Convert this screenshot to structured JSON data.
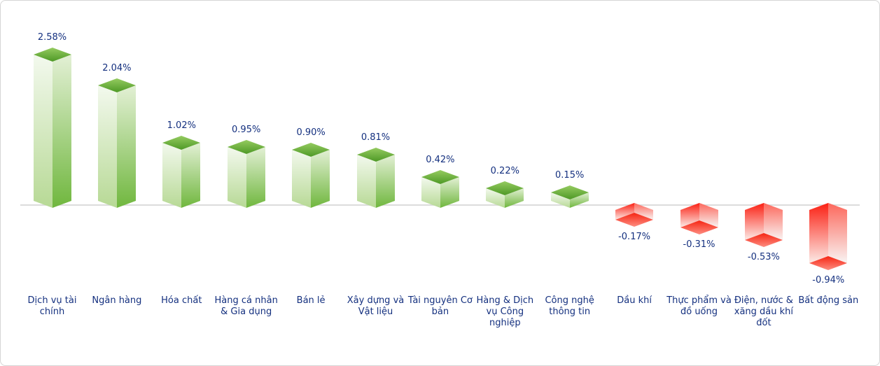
{
  "chart_data": {
    "type": "bar",
    "title": "",
    "subtitle": "",
    "xlabel": "",
    "ylabel": "",
    "unit": "%",
    "baseline_value": 0,
    "grid": false,
    "legend": false,
    "categories": [
      "Dịch vụ tài chính",
      "Ngân hàng",
      "Hóa chất",
      "Hàng cá nhân & Gia dụng",
      "Bán lẻ",
      "Xây dựng và Vật liệu",
      "Tài nguyên Cơ bản",
      "Hàng & Dịch vụ Công nghiệp",
      "Công nghệ thông tin",
      "Dầu khí",
      "Thực phẩm và đồ uống",
      "Điện, nước & xăng dầu khí đốt",
      "Bất động sản"
    ],
    "values": [
      2.58,
      2.04,
      1.02,
      0.95,
      0.9,
      0.81,
      0.42,
      0.22,
      0.15,
      -0.17,
      -0.31,
      -0.53,
      -0.94
    ],
    "value_labels": [
      "2.58%",
      "2.04%",
      "1.02%",
      "0.95%",
      "0.90%",
      "0.81%",
      "0.42%",
      "0.22%",
      "0.15%",
      "-0.17%",
      "-0.31%",
      "-0.53%",
      "-0.94%"
    ],
    "colors": {
      "positive_accent": "#6ab23a",
      "negative_accent": "#ff2616",
      "text_label": "#14307f",
      "baseline": "#dcdcdc",
      "card_border": "#d5d5d5",
      "background": "#ffffff",
      "positive_left_face": [
        "#f3f9ee",
        "#b7d995"
      ],
      "positive_right_face": [
        "#e3f0d5",
        "#70b73e"
      ],
      "positive_cap": [
        "#95cb60",
        "#4e9926"
      ],
      "negative_left_face": [
        "#fb2013",
        "#fcebe7"
      ],
      "negative_right_face": [
        "#fc675b",
        "#f9f4f3"
      ],
      "negative_cap": [
        "#f62513",
        "#fd8d81"
      ]
    }
  }
}
